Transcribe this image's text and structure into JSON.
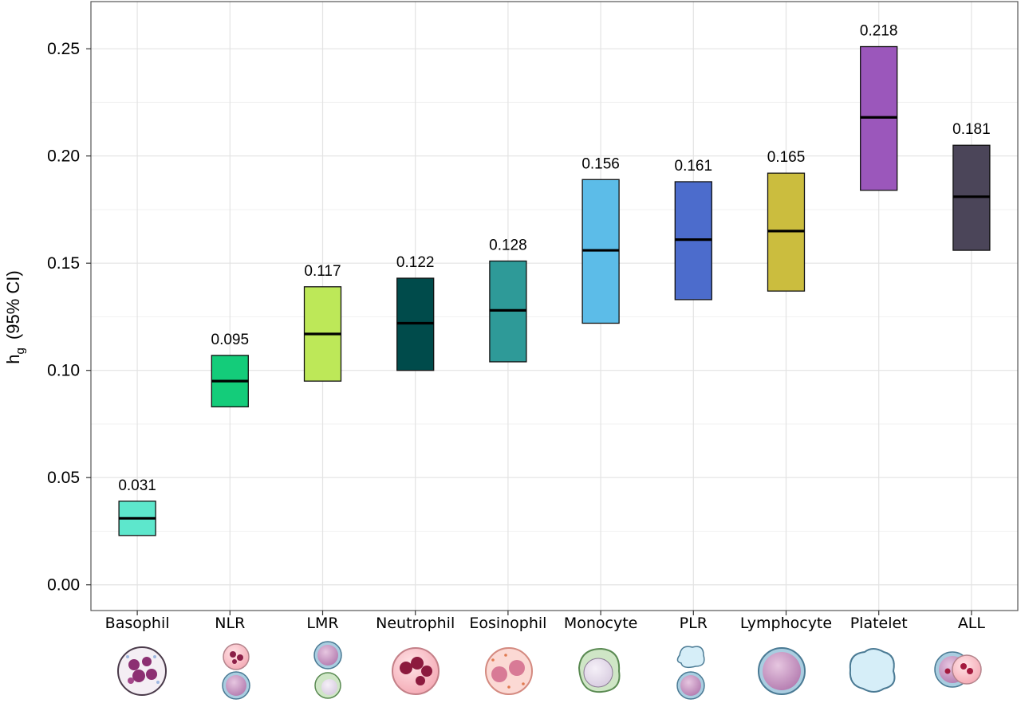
{
  "chart_data": {
    "type": "bar",
    "subtype": "floating-interval",
    "ylabel": "h",
    "ylabel_subscript": "g",
    "ylabel_suffix": "(95% CI)",
    "ylim": [
      -0.012,
      0.272
    ],
    "yticks": [
      0.0,
      0.05,
      0.1,
      0.15,
      0.2,
      0.25
    ],
    "ytick_labels": [
      "0.00",
      "0.05",
      "0.10",
      "0.15",
      "0.20",
      "0.25"
    ],
    "grid": true,
    "categories": [
      "Basophil",
      "NLR",
      "LMR",
      "Neutrophil",
      "Eosinophil",
      "Monocyte",
      "PLR",
      "Lymphocyte",
      "Platelet",
      "ALL"
    ],
    "estimates": [
      0.031,
      0.095,
      0.117,
      0.122,
      0.128,
      0.156,
      0.161,
      0.165,
      0.218,
      0.181
    ],
    "estimate_labels": [
      "0.031",
      "0.095",
      "0.117",
      "0.122",
      "0.128",
      "0.156",
      "0.161",
      "0.165",
      "0.218",
      "0.181"
    ],
    "ci_lower": [
      0.023,
      0.083,
      0.095,
      0.1,
      0.104,
      0.122,
      0.133,
      0.137,
      0.184,
      0.156
    ],
    "ci_upper": [
      0.039,
      0.107,
      0.139,
      0.143,
      0.151,
      0.189,
      0.188,
      0.192,
      0.251,
      0.205
    ],
    "colors": [
      "#5de7cc",
      "#14cc7a",
      "#bde858",
      "#004b4b",
      "#2e9a98",
      "#5cbce8",
      "#4c6ccc",
      "#cbbd3e",
      "#9b57bb",
      "#4b4559"
    ],
    "icons": [
      "basophil-icon",
      "nlr-icon",
      "lmr-icon",
      "neutrophil-icon",
      "eosinophil-icon",
      "monocyte-icon",
      "plr-icon",
      "lymphocyte-icon",
      "platelet-icon",
      "all-cells-icon"
    ]
  }
}
